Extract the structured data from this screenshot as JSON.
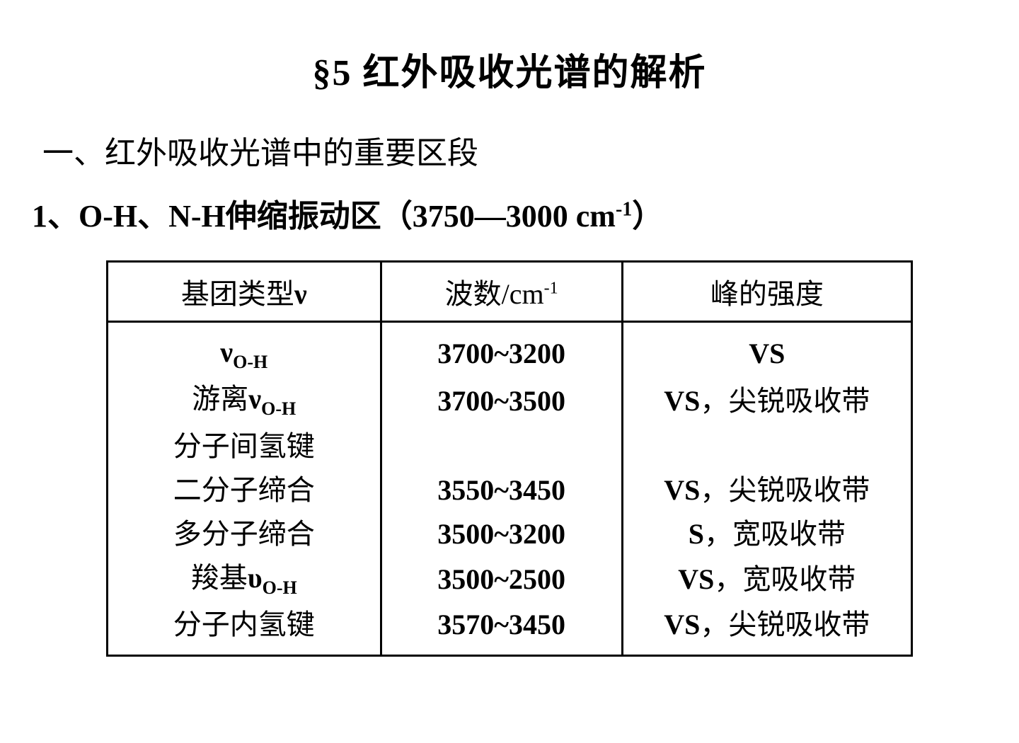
{
  "title": "§5  红外吸收光谱的解析",
  "section_heading": "一、红外吸收光谱中的重要区段",
  "subsection_prefix": "1、O-H、N-H伸缩振动区（3750—3000 cm",
  "subsection_sup": "-1",
  "subsection_suffix": "）",
  "table": {
    "headers": {
      "col1_prefix": "基团类型",
      "col1_nu": "ν",
      "col2_prefix": "波数/cm",
      "col2_sup": "-1",
      "col3": "峰的强度"
    },
    "rows": [
      {
        "label_prefix": "",
        "label_nu": "ν",
        "label_sub": "O-H",
        "label_suffix": "",
        "wave": "3700~3200",
        "intensity_vs": "VS",
        "intensity_cn": ""
      },
      {
        "label_prefix": "游离",
        "label_nu": "ν",
        "label_sub": "O-H",
        "label_suffix": "",
        "wave": "3700~3500",
        "intensity_vs": "VS",
        "intensity_cn": "，尖锐吸收带"
      },
      {
        "label_prefix": "分子间氢键",
        "label_nu": "",
        "label_sub": "",
        "label_suffix": "",
        "wave": "",
        "intensity_vs": "",
        "intensity_cn": ""
      },
      {
        "label_prefix": "二分子缔合",
        "label_nu": "",
        "label_sub": "",
        "label_suffix": "",
        "wave": "3550~3450",
        "intensity_vs": "VS",
        "intensity_cn": "，尖锐吸收带"
      },
      {
        "label_prefix": "多分子缔合",
        "label_nu": "",
        "label_sub": "",
        "label_suffix": "",
        "wave": "3500~3200",
        "intensity_vs": "S",
        "intensity_cn": "，宽吸收带"
      },
      {
        "label_prefix": "羧基",
        "label_nu": "υ",
        "label_sub": "O-H",
        "label_suffix": "",
        "wave": "3500~2500",
        "intensity_vs": "VS",
        "intensity_cn": "，宽吸收带"
      },
      {
        "label_prefix": "分子内氢键",
        "label_nu": "",
        "label_sub": "",
        "label_suffix": "",
        "wave": "3570~3450",
        "intensity_vs": "VS",
        "intensity_cn": "，尖锐吸收带"
      }
    ]
  },
  "style": {
    "background": "#ffffff",
    "text_color": "#000000",
    "title_fontsize": 52,
    "heading_fontsize": 44,
    "cell_fontsize": 40,
    "border_width": 3
  }
}
